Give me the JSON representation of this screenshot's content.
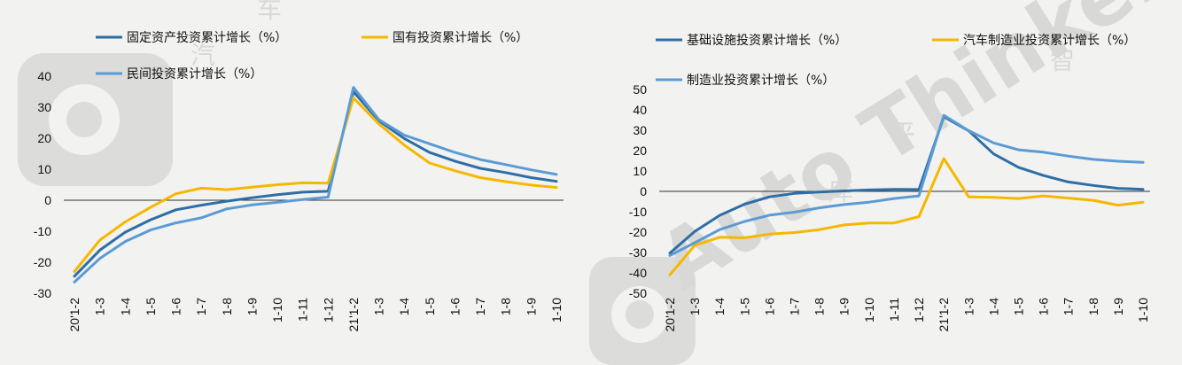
{
  "watermark": {
    "brand": "Auto Thinker",
    "cjk": [
      "汽",
      "车",
      "智",
      "库",
      "平"
    ]
  },
  "chart_data": [
    {
      "type": "line",
      "title": "",
      "categories": [
        "20'1-2",
        "1-3",
        "1-4",
        "1-5",
        "1-6",
        "1-7",
        "1-8",
        "1-9",
        "1-10",
        "1-11",
        "1-12",
        "21'1-2",
        "1-3",
        "1-4",
        "1-5",
        "1-6",
        "1-7",
        "1-8",
        "1-9",
        "1-10"
      ],
      "ylim": [
        -30,
        40
      ],
      "yticks": [
        -30,
        -20,
        -10,
        0,
        10,
        20,
        30,
        40
      ],
      "grid": false,
      "legend_position": "top",
      "series": [
        {
          "name": "固定资产投资累计增长（%）",
          "color": "#2e6ea6",
          "values": [
            -24.5,
            -16.1,
            -10.3,
            -6.3,
            -3.1,
            -1.6,
            -0.3,
            0.8,
            1.8,
            2.6,
            2.9,
            35.0,
            25.6,
            19.9,
            15.4,
            12.6,
            10.3,
            8.9,
            7.3,
            6.1
          ]
        },
        {
          "name": "国有投资累计增长（%）",
          "color": "#f5b800",
          "values": [
            -23.0,
            -12.9,
            -7.0,
            -2.3,
            2.1,
            3.9,
            3.4,
            4.2,
            5.0,
            5.6,
            5.5,
            33.0,
            24.6,
            17.8,
            12.0,
            9.5,
            7.3,
            6.0,
            4.9,
            4.1
          ]
        },
        {
          "name": "民间投资累计增长（%）",
          "color": "#5b9bd5",
          "values": [
            -26.4,
            -18.8,
            -13.3,
            -9.6,
            -7.3,
            -5.7,
            -2.8,
            -1.5,
            -0.7,
            0.2,
            1.0,
            36.4,
            26.0,
            21.0,
            18.2,
            15.4,
            13.1,
            11.5,
            9.8,
            8.3
          ]
        }
      ]
    },
    {
      "type": "line",
      "title": "",
      "categories": [
        "20'1-2",
        "1-3",
        "1-4",
        "1-5",
        "1-6",
        "1-7",
        "1-8",
        "1-9",
        "1-10",
        "1-11",
        "1-12",
        "21'1-2",
        "1-3",
        "1-4",
        "1-5",
        "1-6",
        "1-7",
        "1-8",
        "1-9",
        "1-10"
      ],
      "ylim": [
        -50,
        50
      ],
      "yticks": [
        -50,
        -40,
        -30,
        -20,
        -10,
        0,
        10,
        20,
        30,
        40,
        50
      ],
      "grid": false,
      "legend_position": "top",
      "series": [
        {
          "name": "基础设施投资累计增长（%）",
          "color": "#2e6ea6",
          "values": [
            -30.3,
            -19.7,
            -11.8,
            -6.3,
            -2.7,
            -1.0,
            -0.3,
            0.2,
            0.7,
            1.0,
            0.9,
            36.6,
            29.7,
            18.4,
            11.8,
            7.8,
            4.6,
            2.9,
            1.5,
            1.0
          ]
        },
        {
          "name": "汽车制造业投资累计增长（%）",
          "color": "#f5b800",
          "values": [
            -41.0,
            -26.5,
            -22.5,
            -22.8,
            -21.0,
            -20.2,
            -18.8,
            -16.5,
            -15.5,
            -15.5,
            -12.4,
            16.1,
            -2.7,
            -2.9,
            -3.5,
            -2.2,
            -3.3,
            -4.4,
            -6.8,
            -5.3
          ]
        },
        {
          "name": "制造业投资累计增长（%）",
          "color": "#5b9bd5",
          "values": [
            -31.5,
            -25.2,
            -18.8,
            -14.8,
            -11.7,
            -10.2,
            -8.1,
            -6.5,
            -5.3,
            -3.5,
            -2.2,
            37.3,
            29.8,
            23.8,
            20.4,
            19.2,
            17.3,
            15.7,
            14.8,
            14.2
          ]
        }
      ]
    }
  ]
}
